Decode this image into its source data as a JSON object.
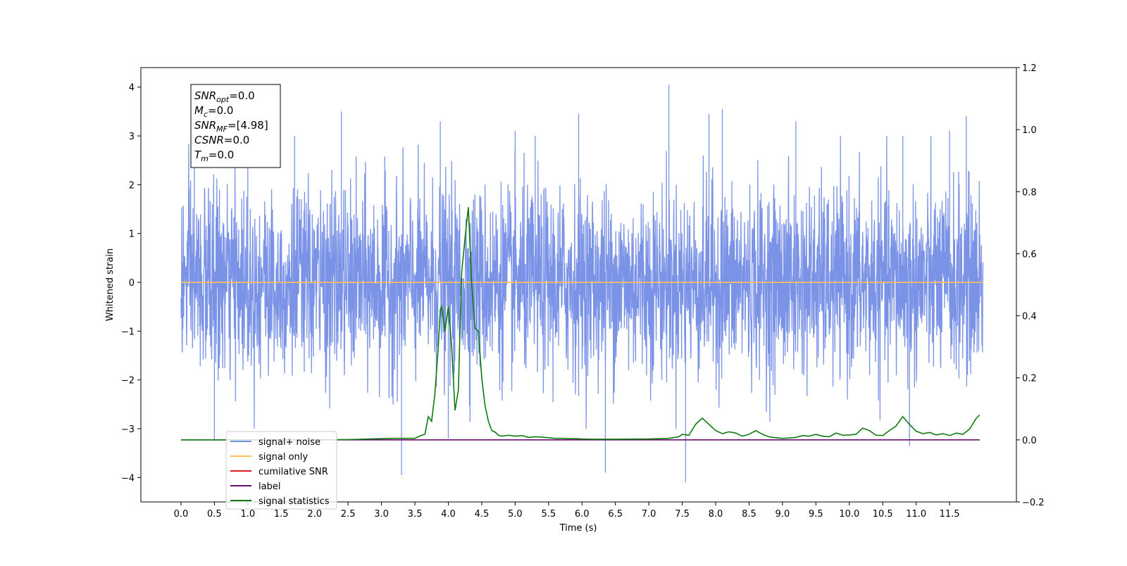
{
  "chart_data": {
    "type": "line",
    "title": "",
    "xlabel": "Time (s)",
    "ylabel": "Whitened strain",
    "y2label": "",
    "xlim": [
      -0.6,
      12.5
    ],
    "ylim": [
      -4.5,
      4.4
    ],
    "y2lim": [
      -0.2,
      1.2
    ],
    "xticks": [
      "0.0",
      "0.5",
      "1.0",
      "1.5",
      "2.0",
      "2.5",
      "3.0",
      "3.5",
      "4.0",
      "4.5",
      "5.0",
      "5.5",
      "6.0",
      "6.5",
      "7.0",
      "7.5",
      "8.0",
      "8.5",
      "9.0",
      "9.5",
      "10.0",
      "10.5",
      "11.0",
      "11.5"
    ],
    "yticks": [
      "4",
      "3",
      "2",
      "1",
      "0",
      "−1",
      "−2",
      "−3",
      "−4"
    ],
    "y2ticks": [
      "1.2",
      "1.0",
      "0.8",
      "0.6",
      "0.4",
      "0.2",
      "0.0",
      "−0.2"
    ],
    "grid": false,
    "legend_position": "lower-left",
    "info_box": [
      {
        "base": "SNR",
        "sub": "opt",
        "value": "=0.0"
      },
      {
        "base": "M",
        "sub": "c",
        "value": "=0.0"
      },
      {
        "base": "SNR",
        "sub": "MF",
        "value": "=[4.98]"
      },
      {
        "base": "CSNR",
        "sub": "",
        "value": "=0.0"
      },
      {
        "base": "T",
        "sub": "m",
        "value": "=0.0"
      }
    ],
    "series": [
      {
        "name": "signal+ noise",
        "color": "#7B93E6",
        "axis": "left",
        "kind": "noise",
        "x_range": [
          0.0,
          12.0
        ],
        "std": 1.0,
        "notable_peaks": [
          [
            0.2,
            3.1
          ],
          [
            0.5,
            -3.25
          ],
          [
            1.0,
            2.8
          ],
          [
            1.7,
            3.0
          ],
          [
            2.4,
            3.5
          ],
          [
            3.3,
            -3.95
          ],
          [
            3.88,
            3.3
          ],
          [
            4.0,
            -3.2
          ],
          [
            5.0,
            3.1
          ],
          [
            5.3,
            3.0
          ],
          [
            5.95,
            3.45
          ],
          [
            6.35,
            -3.9
          ],
          [
            7.3,
            4.05
          ],
          [
            7.55,
            -4.1
          ],
          [
            7.9,
            3.45
          ],
          [
            8.1,
            3.55
          ],
          [
            9.2,
            3.3
          ],
          [
            10.8,
            3.0
          ],
          [
            10.9,
            -3.35
          ],
          [
            11.5,
            3.1
          ],
          [
            11.75,
            3.4
          ]
        ]
      },
      {
        "name": "signal only",
        "color": "#FFBF5A",
        "axis": "left",
        "x": [
          0.0,
          12.0
        ],
        "values": [
          0.0,
          0.0
        ]
      },
      {
        "name": "cumilative SNR",
        "color": "#E31A1C",
        "axis": "right",
        "x": [],
        "values": []
      },
      {
        "name": "label",
        "color": "#6A0F6E",
        "axis": "right",
        "x": [
          0.0,
          11.95
        ],
        "values": [
          0.0,
          0.0
        ]
      },
      {
        "name": "signal statistics",
        "color": "#0F7A0F",
        "axis": "right",
        "x": [
          0.0,
          0.5,
          1.0,
          1.5,
          2.0,
          2.5,
          3.0,
          3.2,
          3.5,
          3.6,
          3.65,
          3.7,
          3.75,
          3.8,
          3.85,
          3.88,
          3.9,
          3.95,
          4.0,
          4.05,
          4.1,
          4.15,
          4.2,
          4.25,
          4.3,
          4.35,
          4.4,
          4.45,
          4.5,
          4.55,
          4.6,
          4.65,
          4.7,
          4.75,
          4.8,
          4.9,
          5.0,
          5.1,
          5.2,
          5.3,
          5.4,
          5.5,
          5.6,
          5.7,
          5.8,
          5.9,
          6.0,
          6.2,
          6.5,
          7.0,
          7.3,
          7.45,
          7.5,
          7.6,
          7.7,
          7.8,
          7.9,
          8.0,
          8.1,
          8.2,
          8.3,
          8.4,
          8.5,
          8.6,
          8.7,
          8.8,
          8.9,
          9.0,
          9.1,
          9.2,
          9.3,
          9.4,
          9.5,
          9.6,
          9.7,
          9.8,
          9.9,
          10.0,
          10.1,
          10.2,
          10.3,
          10.4,
          10.5,
          10.6,
          10.7,
          10.8,
          10.9,
          11.0,
          11.1,
          11.2,
          11.3,
          11.4,
          11.5,
          11.6,
          11.7,
          11.8,
          11.9,
          11.95
        ],
        "values": [
          0.0,
          0.0,
          0.0,
          0.0,
          0.0,
          0.001,
          0.004,
          0.005,
          0.005,
          0.015,
          0.018,
          0.075,
          0.06,
          0.15,
          0.3,
          0.42,
          0.43,
          0.35,
          0.43,
          0.3,
          0.095,
          0.16,
          0.54,
          0.65,
          0.75,
          0.5,
          0.36,
          0.35,
          0.2,
          0.11,
          0.06,
          0.03,
          0.025,
          0.015,
          0.012,
          0.015,
          0.012,
          0.014,
          0.008,
          0.01,
          0.009,
          0.007,
          0.005,
          0.005,
          0.004,
          0.004,
          0.003,
          0.002,
          0.002,
          0.003,
          0.005,
          0.01,
          0.018,
          0.015,
          0.05,
          0.07,
          0.05,
          0.03,
          0.02,
          0.026,
          0.022,
          0.012,
          0.018,
          0.03,
          0.018,
          0.01,
          0.007,
          0.005,
          0.006,
          0.008,
          0.014,
          0.012,
          0.018,
          0.012,
          0.01,
          0.022,
          0.015,
          0.016,
          0.018,
          0.038,
          0.03,
          0.015,
          0.014,
          0.03,
          0.045,
          0.075,
          0.05,
          0.028,
          0.02,
          0.024,
          0.016,
          0.02,
          0.014,
          0.022,
          0.018,
          0.035,
          0.07,
          0.08
        ]
      }
    ]
  }
}
